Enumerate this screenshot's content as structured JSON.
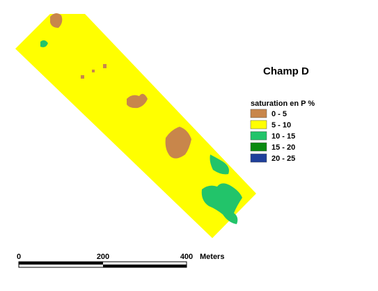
{
  "map_title": "Champ D",
  "legend": {
    "title": "saturation en  P %",
    "items": [
      {
        "label": "0 - 5",
        "color": "#c8864b"
      },
      {
        "label": "5 - 10",
        "color": "#ffff00"
      },
      {
        "label": "10 - 15",
        "color": "#22c46a"
      },
      {
        "label": "15 - 20",
        "color": "#0a8a10"
      },
      {
        "label": "20 - 25",
        "color": "#1f3f9a"
      }
    ]
  },
  "scale_bar": {
    "labels": [
      "0",
      "200",
      "400"
    ],
    "unit": "Meters"
  }
}
